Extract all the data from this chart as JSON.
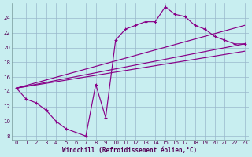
{
  "bg_color": "#c8eef0",
  "grid_color": "#9ab8cc",
  "line_color": "#880088",
  "xlabel": "Windchill (Refroidissement éolien,°C)",
  "xlim_min": -0.5,
  "xlim_max": 23.4,
  "ylim_min": 7.5,
  "ylim_max": 26.0,
  "xticks": [
    0,
    1,
    2,
    3,
    4,
    5,
    6,
    7,
    8,
    9,
    10,
    11,
    12,
    13,
    14,
    15,
    16,
    17,
    18,
    19,
    20,
    21,
    22,
    23
  ],
  "yticks": [
    8,
    10,
    12,
    14,
    16,
    18,
    20,
    22,
    24
  ],
  "main_x": [
    0,
    1,
    2,
    3,
    4,
    5,
    6,
    7,
    8,
    9,
    10,
    11,
    12,
    13,
    14,
    15,
    16,
    17,
    18,
    19,
    20,
    21,
    22,
    23
  ],
  "main_y": [
    14.5,
    13.0,
    12.5,
    11.5,
    10.0,
    9.0,
    8.5,
    8.0,
    15.0,
    10.5,
    21.0,
    22.5,
    23.0,
    23.5,
    23.5,
    25.5,
    24.5,
    24.2,
    23.0,
    22.5,
    21.5,
    21.0,
    20.5,
    20.5
  ],
  "line1_x": [
    0,
    23
  ],
  "line1_y": [
    14.5,
    23.0
  ],
  "line2_x": [
    0,
    23
  ],
  "line2_y": [
    14.5,
    20.5
  ],
  "line3_x": [
    0,
    23
  ],
  "line3_y": [
    14.5,
    19.5
  ]
}
